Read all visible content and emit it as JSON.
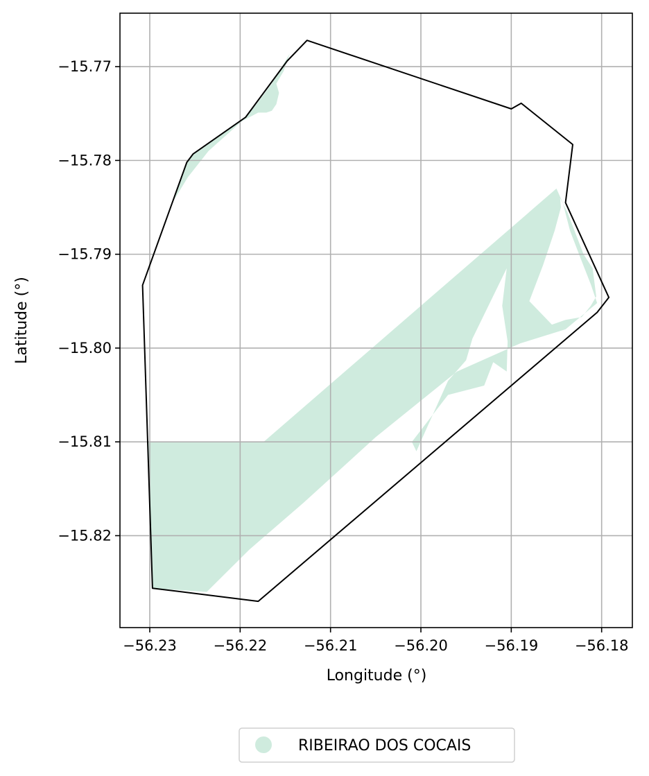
{
  "chart_data": {
    "type": "map",
    "xlabel": "Longitude (°)",
    "ylabel": "Latitude (°)",
    "xlim": [
      -56.2333,
      -56.1766
    ],
    "ylim": [
      -15.8298,
      -15.7643
    ],
    "xticks": [
      -56.23,
      -56.22,
      -56.21,
      -56.2,
      -56.19,
      -56.18
    ],
    "xtick_labels": [
      "−56.23",
      "−56.22",
      "−56.21",
      "−56.20",
      "−56.19",
      "−56.18"
    ],
    "yticks": [
      -15.77,
      -15.78,
      -15.79,
      -15.8,
      -15.81,
      -15.82
    ],
    "ytick_labels": [
      "−15.77",
      "−15.78",
      "−15.79",
      "−15.80",
      "−15.81",
      "−15.82"
    ],
    "grid": true,
    "legend": {
      "placement": "bottom-center",
      "entries": [
        {
          "label": "RIBEIRAO DOS COCAIS",
          "color": "#cfebde"
        }
      ]
    },
    "boundary": {
      "color": "#000000",
      "coordinates": [
        [
          -56.2126,
          -15.7672
        ],
        [
          -56.2148,
          -15.7694
        ],
        [
          -56.2194,
          -15.7754
        ],
        [
          -56.2252,
          -15.7793
        ],
        [
          -56.2259,
          -15.7802
        ],
        [
          -56.2308,
          -15.7933
        ],
        [
          -56.2297,
          -15.8256
        ],
        [
          -56.218,
          -15.827
        ],
        [
          -56.1805,
          -15.7962
        ],
        [
          -56.1792,
          -15.7946
        ],
        [
          -56.184,
          -15.7845
        ],
        [
          -56.1832,
          -15.7783
        ],
        [
          -56.1889,
          -15.7739
        ],
        [
          -56.19,
          -15.7745
        ],
        [
          -56.2126,
          -15.7672
        ]
      ]
    },
    "regions": [
      {
        "name": "RIBEIRAO DOS COCAIS",
        "color": "#cfebde",
        "polygons": [
          [
            [
              -56.2145,
              -15.7686
            ],
            [
              -56.2165,
              -15.7718
            ],
            [
              -56.2182,
              -15.774
            ],
            [
              -56.2194,
              -15.7754
            ],
            [
              -56.2252,
              -15.7793
            ],
            [
              -56.2259,
              -15.7802
            ],
            [
              -56.2275,
              -15.7845
            ],
            [
              -56.2258,
              -15.7818
            ],
            [
              -56.2235,
              -15.779
            ],
            [
              -56.2198,
              -15.7758
            ],
            [
              -56.218,
              -15.7749
            ],
            [
              -56.2171,
              -15.7749
            ],
            [
              -56.2165,
              -15.7747
            ],
            [
              -56.216,
              -15.774
            ],
            [
              -56.2157,
              -15.7728
            ],
            [
              -56.216,
              -15.7718
            ],
            [
              -56.2152,
              -15.7705
            ],
            [
              -56.2145,
              -15.7686
            ]
          ],
          [
            [
              -56.2303,
              -15.81
            ],
            [
              -56.2174,
              -15.81
            ],
            [
              -56.185,
              -15.783
            ],
            [
              -56.1843,
              -15.7845
            ],
            [
              -56.1835,
              -15.7875
            ],
            [
              -56.1823,
              -15.7905
            ],
            [
              -56.1812,
              -15.7932
            ],
            [
              -56.1805,
              -15.7952
            ],
            [
              -56.184,
              -15.798
            ],
            [
              -56.189,
              -15.7995
            ],
            [
              -56.196,
              -15.8025
            ],
            [
              -56.205,
              -15.8095
            ],
            [
              -56.213,
              -15.8165
            ],
            [
              -56.219,
              -15.8215
            ],
            [
              -56.2237,
              -15.826
            ],
            [
              -56.2297,
              -15.8256
            ],
            [
              -56.2303,
              -15.81
            ]
          ]
        ],
        "holes": [
          [
            [
              -56.1905,
              -15.7915
            ],
            [
              -56.1943,
              -15.799
            ],
            [
              -56.195,
              -15.8013
            ],
            [
              -56.197,
              -15.8035
            ],
            [
              -56.2005,
              -15.811
            ],
            [
              -56.201,
              -15.81
            ],
            [
              -56.197,
              -15.805
            ],
            [
              -56.193,
              -15.804
            ],
            [
              -56.192,
              -15.8015
            ],
            [
              -56.1905,
              -15.8025
            ],
            [
              -56.1904,
              -15.7993
            ],
            [
              -56.191,
              -15.7955
            ],
            [
              -56.1905,
              -15.7915
            ]
          ],
          [
            [
              -56.1846,
              -15.784
            ],
            [
              -56.1845,
              -15.785
            ],
            [
              -56.1852,
              -15.7875
            ],
            [
              -56.1865,
              -15.7912
            ],
            [
              -56.188,
              -15.795
            ],
            [
              -56.1855,
              -15.7975
            ],
            [
              -56.184,
              -15.797
            ],
            [
              -56.1822,
              -15.7967
            ],
            [
              -56.1812,
              -15.7955
            ],
            [
              -56.1806,
              -15.7945
            ],
            [
              -56.181,
              -15.7915
            ],
            [
              -56.182,
              -15.79
            ],
            [
              -56.1838,
              -15.7855
            ],
            [
              -56.1846,
              -15.784
            ]
          ]
        ]
      }
    ]
  }
}
